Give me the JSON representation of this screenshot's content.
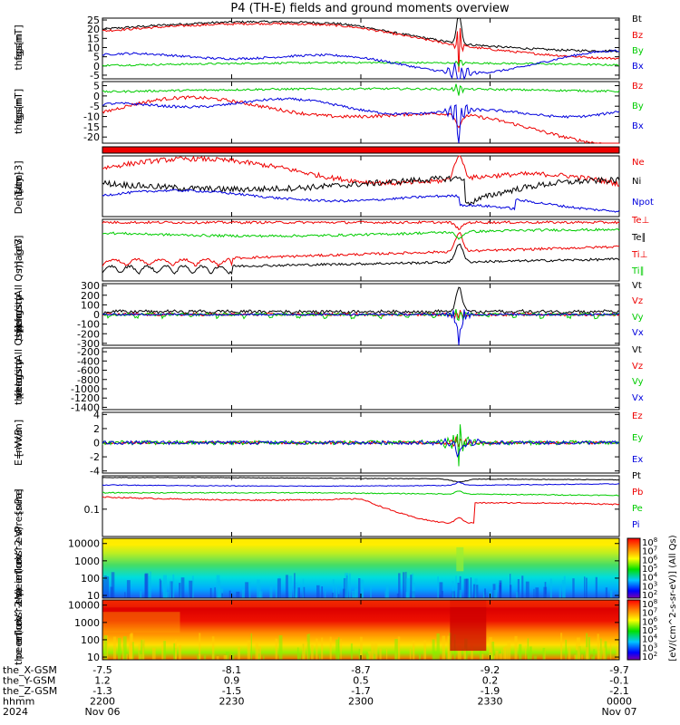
{
  "title": "P4 (TH-E) fields and ground moments overview",
  "colors": {
    "black": "#000000",
    "red": "#ee0000",
    "green": "#00cc00",
    "blue": "#0000dd"
  },
  "chart_data": [
    {
      "type": "line",
      "id": "fgs_gsm",
      "ylabel": [
        "the",
        "fgs",
        "gsm",
        "[nT]"
      ],
      "ylim": [
        -7,
        26
      ],
      "yticks": [
        "25",
        "20",
        "15",
        "10",
        "5",
        "0",
        "-5"
      ],
      "ytickvals": [
        25,
        20,
        15,
        10,
        5,
        0,
        -5
      ],
      "series": [
        {
          "name": "Bt",
          "color": "#000000"
        },
        {
          "name": "Bz",
          "color": "#ee0000"
        },
        {
          "name": "By",
          "color": "#00cc00"
        },
        {
          "name": "Bx",
          "color": "#0000dd"
        }
      ]
    },
    {
      "type": "line",
      "id": "fgs_gsm_neg",
      "ylabel": [
        "the",
        "fgs",
        "gsm",
        "[nT]"
      ],
      "ylim": [
        -23,
        7
      ],
      "yticks": [
        "5",
        "0",
        "-5",
        "-10",
        "-15",
        "-20"
      ],
      "ytickvals": [
        5,
        0,
        -5,
        -10,
        -15,
        -20
      ],
      "series": [
        {
          "name": "Bz",
          "color": "#ee0000"
        },
        {
          "name": "By",
          "color": "#00cc00"
        },
        {
          "name": "Bx",
          "color": "#0000dd"
        }
      ]
    },
    {
      "type": "line",
      "id": "density",
      "ylabel": [
        "Density",
        "[1/cc]",
        "[cm-3]"
      ],
      "series": [
        {
          "name": "Ne",
          "color": "#ee0000"
        },
        {
          "name": "Ni",
          "color": "#000000"
        },
        {
          "name": "Npot",
          "color": "#0000dd"
        }
      ]
    },
    {
      "type": "line",
      "id": "temperature",
      "ylabel": [
        "magt3",
        "[eV]"
      ],
      "series": [
        {
          "name": "Te⊥",
          "color": "#ee0000"
        },
        {
          "name": "Te∥",
          "color": "#000000"
        },
        {
          "name": "Ti⊥",
          "color": "#ee0000"
        },
        {
          "name": "Ti∥",
          "color": "#00cc00"
        }
      ]
    },
    {
      "type": "line",
      "id": "peir_velocity",
      "ylabel": [
        "the",
        "peir",
        "velocity",
        "gsm",
        "[km/s (All Qs)]"
      ],
      "ylim": [
        -320,
        320
      ],
      "yticks": [
        "300",
        "200",
        "100",
        "0",
        "-100",
        "-200",
        "-300"
      ],
      "ytickvals": [
        300,
        200,
        100,
        0,
        -100,
        -200,
        -300
      ],
      "series": [
        {
          "name": "Vt",
          "color": "#000000"
        },
        {
          "name": "Vz",
          "color": "#ee0000"
        },
        {
          "name": "Vy",
          "color": "#00cc00"
        },
        {
          "name": "Vx",
          "color": "#0000dd"
        }
      ]
    },
    {
      "type": "line",
      "id": "peer_velocity",
      "ylabel": [
        "the",
        "peer",
        "velocity",
        "gsm",
        "[km/s (All Qs)]"
      ],
      "ylim": [
        -1450,
        -120
      ],
      "yticks": [
        "-200",
        "-400",
        "-600",
        "-800",
        "-1000",
        "-1200",
        "-1400"
      ],
      "ytickvals": [
        -200,
        -400,
        -600,
        -800,
        -1000,
        -1200,
        -1400
      ],
      "series": [
        {
          "name": "Vt",
          "color": "#000000"
        },
        {
          "name": "Vz",
          "color": "#ee0000"
        },
        {
          "name": "Vy",
          "color": "#00cc00"
        },
        {
          "name": "Vx",
          "color": "#0000dd"
        }
      ]
    },
    {
      "type": "line",
      "id": "efield",
      "ylabel": [
        "E=-VxB",
        "[mV/m]"
      ],
      "ylim": [
        -4.3,
        4.3
      ],
      "yticks": [
        "4",
        "2",
        "0",
        "-2",
        "-4"
      ],
      "ytickvals": [
        4,
        2,
        0,
        -2,
        -4
      ],
      "series": [
        {
          "name": "Ez",
          "color": "#ee0000"
        },
        {
          "name": "Ey",
          "color": "#00cc00"
        },
        {
          "name": "Ex",
          "color": "#0000dd"
        }
      ]
    },
    {
      "type": "line",
      "id": "pressure",
      "ylabel": [
        "Pressure",
        "[nPa]"
      ],
      "scale": "log",
      "yticks": [
        "0.1"
      ],
      "series": [
        {
          "name": "Pt",
          "color": "#000000"
        },
        {
          "name": "Pb",
          "color": "#ee0000"
        },
        {
          "name": "Pe",
          "color": "#00cc00"
        },
        {
          "name": "Pi",
          "color": "#0000dd"
        }
      ]
    },
    {
      "type": "heatmap",
      "id": "peir_en_eflux",
      "ylabel": [
        "the",
        "peir",
        "en",
        "eflux",
        "eV",
        "(cm^2-s-",
        "sr-eV)"
      ],
      "scale": "log",
      "yticks": [
        "10000",
        "1000",
        "100",
        "10"
      ],
      "ytickvals": [
        10000,
        1000,
        100,
        10
      ],
      "ylim": [
        7,
        20000
      ],
      "colorbar_label": "[eV/(cm^2-s-sr-eV)] (All Qs)",
      "colorbar_ticks": [
        "10^8",
        "10^7",
        "10^6",
        "10^5",
        "10^4",
        "10^3",
        "10^2"
      ]
    },
    {
      "type": "heatmap",
      "id": "peer_en_eflux",
      "ylabel": [
        "the",
        "peer",
        "en",
        "eflux",
        "eV",
        "(cm^2-s-",
        "sr-eV)"
      ],
      "scale": "log",
      "yticks": [
        "10000",
        "1000",
        "100",
        "10"
      ],
      "ytickvals": [
        10000,
        1000,
        100,
        10
      ],
      "ylim": [
        7,
        20000
      ],
      "colorbar_label": "[eV/(cm^2-s-sr-eV)] (All Qs)",
      "colorbar_ticks": [
        "10^8",
        "10^7",
        "10^6",
        "10^5",
        "10^4",
        "10^3",
        "10^2"
      ]
    }
  ],
  "x_axis": {
    "rows": [
      {
        "label": "the_X-GSM",
        "values": [
          "-7.5",
          "-8.1",
          "-8.7",
          "-9.2",
          "-9.7"
        ]
      },
      {
        "label": "the_Y-GSM",
        "values": [
          "1.2",
          "0.9",
          "0.5",
          "0.2",
          "-0.1"
        ]
      },
      {
        "label": "the_Z-GSM",
        "values": [
          "-1.3",
          "-1.5",
          "-1.7",
          "-1.9",
          "-2.1"
        ]
      },
      {
        "label": "hhmm",
        "values": [
          "2200",
          "2230",
          "2300",
          "2330",
          "0000"
        ]
      },
      {
        "label": "2024",
        "values": [
          "Nov 06",
          "",
          "",
          "",
          "Nov 07"
        ]
      }
    ]
  }
}
